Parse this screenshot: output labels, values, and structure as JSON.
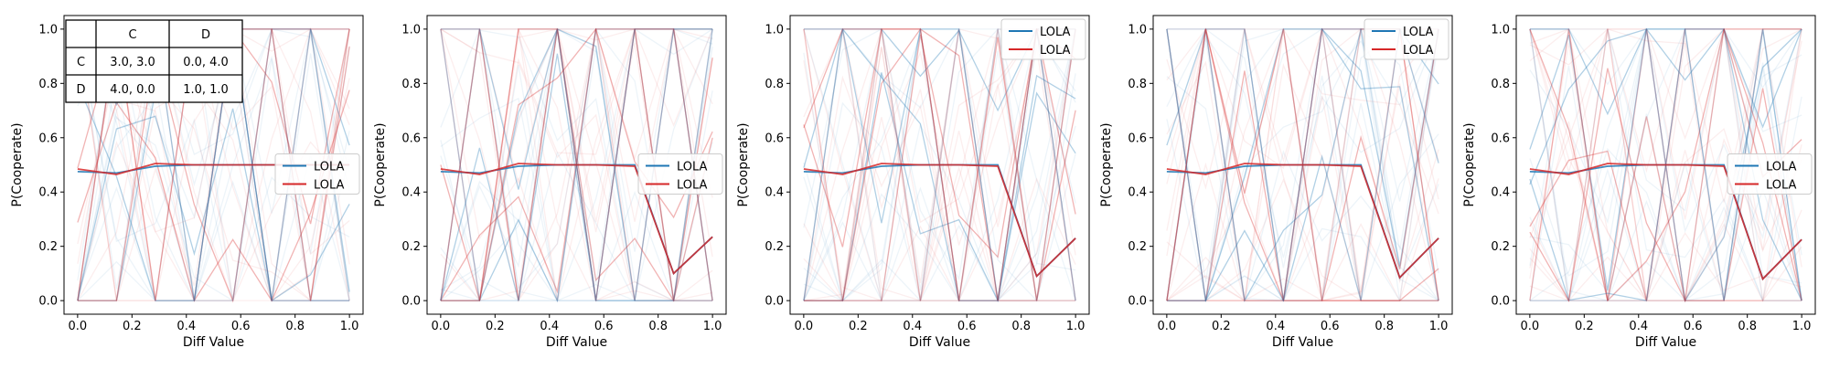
{
  "figure": {
    "colors": {
      "series_a": "#1f77b4",
      "series_b": "#d62728",
      "background": "#ffffff",
      "axes": "#000000"
    }
  },
  "payoff_table": {
    "col_headers": [
      "C",
      "D"
    ],
    "row_headers": [
      "C",
      "D"
    ],
    "cells": [
      [
        "3.0, 3.0",
        "0.0, 4.0"
      ],
      [
        "4.0, 0.0",
        "1.0, 1.0"
      ]
    ]
  },
  "chart_data": [
    {
      "type": "line",
      "xlabel": "Diff Value",
      "ylabel": "P(Cooperate)",
      "xlim": [
        -0.05,
        1.05
      ],
      "ylim": [
        -0.05,
        1.05
      ],
      "xticks": [
        "0.0",
        "0.2",
        "0.4",
        "0.6",
        "0.8",
        "1.0"
      ],
      "yticks": [
        "0.0",
        "0.2",
        "0.4",
        "0.6",
        "0.8",
        "1.0"
      ],
      "grid": false,
      "legend": {
        "placement": "center-right",
        "entries": [
          "LOLA",
          "LOLA"
        ]
      },
      "x": [
        0.0,
        0.143,
        0.286,
        0.429,
        0.571,
        0.714,
        0.857,
        1.0
      ],
      "series": [
        {
          "name": "LOLA",
          "color": "#1f77b4",
          "values": [
            0.475,
            0.47,
            0.495,
            0.5,
            0.5,
            0.5,
            0.5,
            0.5
          ]
        },
        {
          "name": "LOLA",
          "color": "#d62728",
          "values": [
            0.485,
            0.465,
            0.505,
            0.5,
            0.5,
            0.5,
            0.5,
            0.5
          ]
        }
      ]
    },
    {
      "type": "line",
      "xlabel": "Diff Value",
      "ylabel": "P(Cooperate)",
      "xlim": [
        -0.05,
        1.05
      ],
      "ylim": [
        -0.05,
        1.05
      ],
      "xticks": [
        "0.0",
        "0.2",
        "0.4",
        "0.6",
        "0.8",
        "1.0"
      ],
      "yticks": [
        "0.0",
        "0.2",
        "0.4",
        "0.6",
        "0.8",
        "1.0"
      ],
      "grid": false,
      "legend": {
        "placement": "center-right",
        "entries": [
          "LOLA",
          "LOLA"
        ]
      },
      "x": [
        0.0,
        0.143,
        0.286,
        0.429,
        0.571,
        0.714,
        0.857,
        1.0
      ],
      "series": [
        {
          "name": "LOLA",
          "color": "#1f77b4",
          "values": [
            0.475,
            0.47,
            0.495,
            0.5,
            0.5,
            0.5,
            0.1,
            0.235
          ]
        },
        {
          "name": "LOLA",
          "color": "#d62728",
          "values": [
            0.485,
            0.465,
            0.505,
            0.5,
            0.5,
            0.495,
            0.1,
            0.235
          ]
        }
      ]
    },
    {
      "type": "line",
      "xlabel": "Diff Value",
      "ylabel": "P(Cooperate)",
      "xlim": [
        -0.05,
        1.05
      ],
      "ylim": [
        -0.05,
        1.05
      ],
      "xticks": [
        "0.0",
        "0.2",
        "0.4",
        "0.6",
        "0.8",
        "1.0"
      ],
      "yticks": [
        "0.0",
        "0.2",
        "0.4",
        "0.6",
        "0.8",
        "1.0"
      ],
      "grid": false,
      "legend": {
        "placement": "upper-right",
        "entries": [
          "LOLA",
          "LOLA"
        ]
      },
      "x": [
        0.0,
        0.143,
        0.286,
        0.429,
        0.571,
        0.714,
        0.857,
        1.0
      ],
      "series": [
        {
          "name": "LOLA",
          "color": "#1f77b4",
          "values": [
            0.475,
            0.47,
            0.495,
            0.5,
            0.5,
            0.5,
            0.09,
            0.23
          ]
        },
        {
          "name": "LOLA",
          "color": "#d62728",
          "values": [
            0.485,
            0.465,
            0.505,
            0.5,
            0.5,
            0.495,
            0.09,
            0.23
          ]
        }
      ]
    },
    {
      "type": "line",
      "xlabel": "Diff Value",
      "ylabel": "P(Cooperate)",
      "xlim": [
        -0.05,
        1.05
      ],
      "ylim": [
        -0.05,
        1.05
      ],
      "xticks": [
        "0.0",
        "0.2",
        "0.4",
        "0.6",
        "0.8",
        "1.0"
      ],
      "yticks": [
        "0.0",
        "0.2",
        "0.4",
        "0.6",
        "0.8",
        "1.0"
      ],
      "grid": false,
      "legend": {
        "placement": "upper-right",
        "entries": [
          "LOLA",
          "LOLA"
        ]
      },
      "x": [
        0.0,
        0.143,
        0.286,
        0.429,
        0.571,
        0.714,
        0.857,
        1.0
      ],
      "series": [
        {
          "name": "LOLA",
          "color": "#1f77b4",
          "values": [
            0.475,
            0.47,
            0.495,
            0.5,
            0.5,
            0.5,
            0.085,
            0.23
          ]
        },
        {
          "name": "LOLA",
          "color": "#d62728",
          "values": [
            0.485,
            0.465,
            0.505,
            0.5,
            0.5,
            0.495,
            0.085,
            0.23
          ]
        }
      ]
    },
    {
      "type": "line",
      "xlabel": "Diff Value",
      "ylabel": "P(Cooperate)",
      "xlim": [
        -0.05,
        1.05
      ],
      "ylim": [
        -0.05,
        1.05
      ],
      "xticks": [
        "0.0",
        "0.2",
        "0.4",
        "0.6",
        "0.8",
        "1.0"
      ],
      "yticks": [
        "0.0",
        "0.2",
        "0.4",
        "0.6",
        "0.8",
        "1.0"
      ],
      "grid": false,
      "legend": {
        "placement": "center-right",
        "entries": [
          "LOLA",
          "LOLA"
        ]
      },
      "x": [
        0.0,
        0.143,
        0.286,
        0.429,
        0.571,
        0.714,
        0.857,
        1.0
      ],
      "series": [
        {
          "name": "LOLA",
          "color": "#1f77b4",
          "values": [
            0.475,
            0.47,
            0.495,
            0.5,
            0.5,
            0.5,
            0.08,
            0.225
          ]
        },
        {
          "name": "LOLA",
          "color": "#d62728",
          "values": [
            0.485,
            0.465,
            0.505,
            0.5,
            0.5,
            0.495,
            0.08,
            0.225
          ]
        }
      ]
    }
  ]
}
